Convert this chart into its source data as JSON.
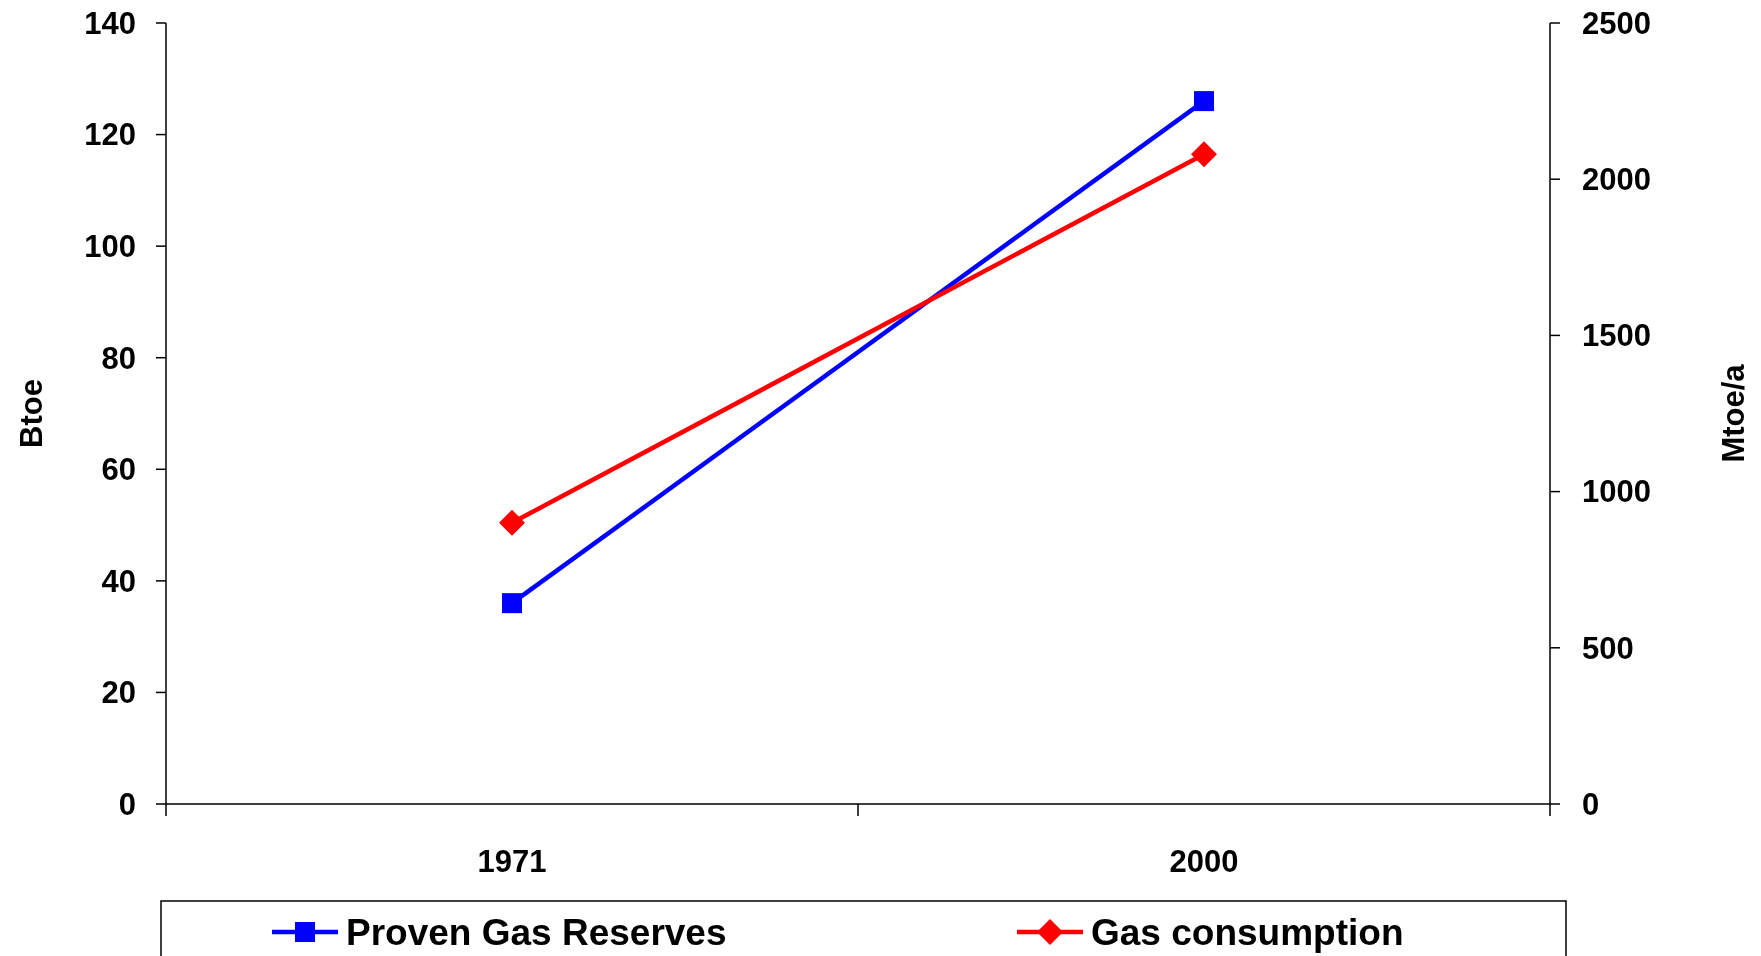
{
  "chart_data": {
    "type": "line",
    "categories": [
      "1971",
      "2000"
    ],
    "ylabel": "Btoe",
    "y2label": "Mtoe/a",
    "ylim": [
      0,
      140
    ],
    "yticks": [
      0,
      20,
      40,
      60,
      80,
      100,
      120,
      140
    ],
    "y2lim": [
      0,
      2500
    ],
    "y2ticks": [
      0,
      500,
      1000,
      1500,
      2000,
      2500
    ],
    "legend": "bottom",
    "series": [
      {
        "name": "Proven Gas Reserves",
        "color": "#0000ff",
        "values": [
          36,
          126
        ],
        "marker": "square"
      },
      {
        "name": "Gas consumption",
        "color": "#ff0000",
        "values": [
          900,
          2080
        ],
        "marker": "diamond",
        "axis": "y2"
      }
    ]
  }
}
